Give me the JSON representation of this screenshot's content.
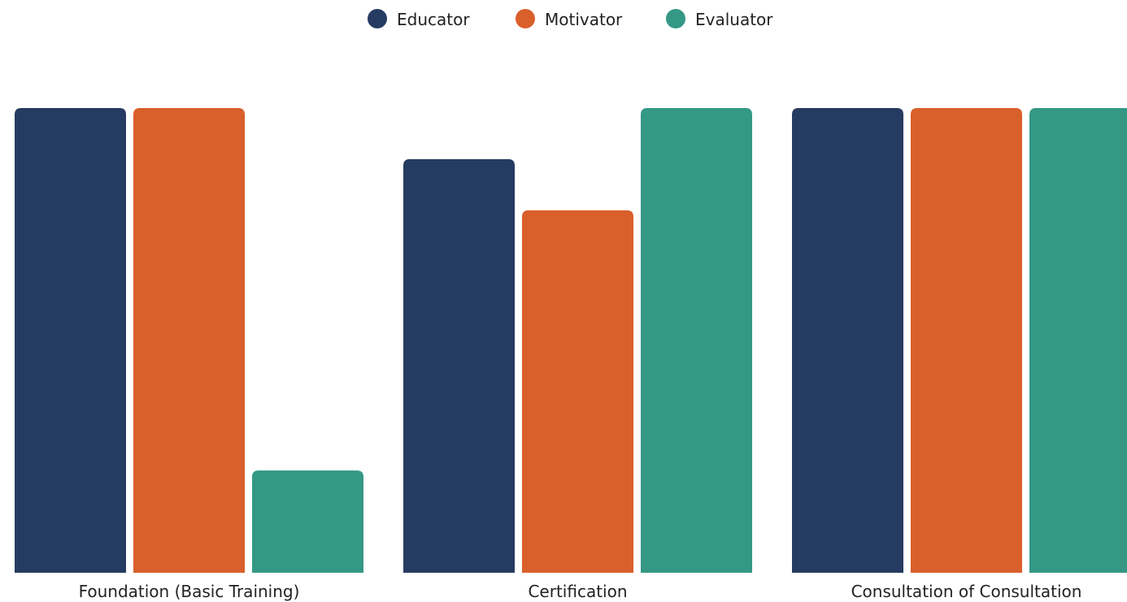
{
  "chart_data": {
    "type": "bar",
    "title": "",
    "xlabel": "",
    "ylabel": "",
    "ylim": [
      0,
      100
    ],
    "grid": false,
    "legend_position": "top-center",
    "categories": [
      "Foundation (Basic Training)",
      "Certification",
      "Consultation of Consultation"
    ],
    "series": [
      {
        "name": "Educator",
        "color": "#263b61",
        "values": [
          100,
          89,
          100
        ]
      },
      {
        "name": "Motivator",
        "color": "#d95f2b",
        "values": [
          100,
          78,
          100
        ]
      },
      {
        "name": "Evaluator",
        "color": "#349885",
        "values": [
          22,
          100,
          100
        ]
      }
    ]
  }
}
